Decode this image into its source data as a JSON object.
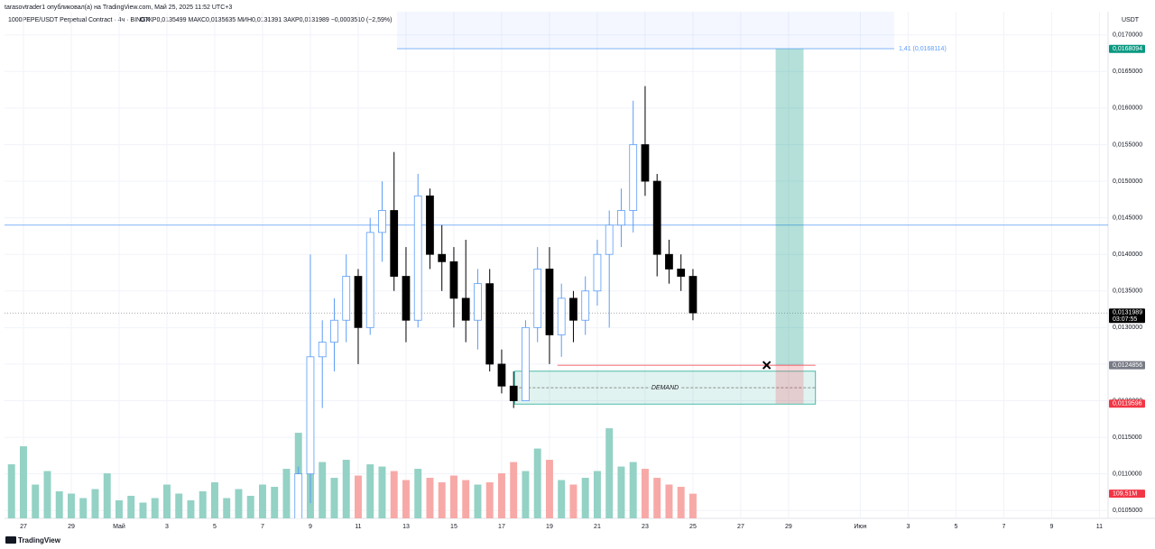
{
  "header": "tarasovtrader1 опубликовал(а) на TradingView.com, Май 25, 2025 11:52 UTC+3",
  "footer": "TradingView",
  "chart_data": {
    "type": "candlestick",
    "title": "1000PEPE/USDT Perpetual Contract · 4ч · BINGX",
    "ohlc_legend": "ОТКР0,0135499  МАКС0,0135635  МИН0,0131391  ЗАКР0,0131989  −0,0003510 (−2,59%)",
    "currency": "USDT",
    "up_color": "#5b9cf6",
    "down_color": "#000000",
    "volume_up_color": "#93d2c5",
    "volume_down_color": "#f7a9a7",
    "x": [
      "2025-04-26T12:00",
      "2025-04-27T00:00",
      "2025-04-27T12:00",
      "2025-04-28T00:00",
      "2025-04-28T12:00",
      "2025-04-29T00:00",
      "2025-04-29T12:00",
      "2025-04-30T00:00",
      "2025-04-30T12:00",
      "2025-05-01T00:00",
      "2025-05-01T12:00",
      "2025-05-02T00:00",
      "2025-05-02T12:00",
      "2025-05-03T00:00",
      "2025-05-03T12:00",
      "2025-05-04T00:00",
      "2025-05-04T12:00",
      "2025-05-05T00:00",
      "2025-05-05T12:00",
      "2025-05-06T00:00",
      "2025-05-06T12:00",
      "2025-05-07T00:00",
      "2025-05-07T12:00",
      "2025-05-08T00:00",
      "2025-05-08T12:00",
      "2025-05-09T00:00",
      "2025-05-09T12:00",
      "2025-05-10T00:00",
      "2025-05-10T12:00",
      "2025-05-11T00:00",
      "2025-05-11T12:00",
      "2025-05-12T00:00",
      "2025-05-12T12:00",
      "2025-05-13T00:00",
      "2025-05-13T12:00",
      "2025-05-14T00:00",
      "2025-05-14T12:00",
      "2025-05-15T00:00",
      "2025-05-15T12:00",
      "2025-05-16T00:00",
      "2025-05-16T12:00",
      "2025-05-17T00:00",
      "2025-05-17T12:00",
      "2025-05-18T00:00",
      "2025-05-18T12:00",
      "2025-05-19T00:00",
      "2025-05-19T12:00",
      "2025-05-20T00:00",
      "2025-05-20T12:00",
      "2025-05-21T00:00",
      "2025-05-21T12:00",
      "2025-05-22T00:00",
      "2025-05-22T12:00",
      "2025-05-23T00:00",
      "2025-05-23T12:00",
      "2025-05-24T00:00",
      "2025-05-24T12:00",
      "2025-05-25T00:00"
    ],
    "open": [
      null,
      null,
      null,
      null,
      null,
      null,
      null,
      null,
      null,
      null,
      null,
      null,
      null,
      null,
      null,
      null,
      null,
      null,
      null,
      null,
      null,
      null,
      null,
      null,
      0.0102,
      0.011,
      0.0126,
      0.0128,
      0.0131,
      0.0137,
      0.013,
      0.0143,
      0.0146,
      0.0137,
      0.0131,
      0.0148,
      0.014,
      0.0139,
      0.0134,
      0.0131,
      0.0136,
      0.0125,
      0.0122,
      0.012,
      0.013,
      0.0138,
      0.0129,
      0.0134,
      0.0131,
      0.0135,
      0.014,
      0.0144,
      0.0146,
      0.0155,
      0.015,
      0.014,
      0.0138,
      0.0137
    ],
    "high": [
      null,
      null,
      null,
      null,
      null,
      null,
      null,
      null,
      null,
      null,
      null,
      null,
      null,
      null,
      null,
      null,
      null,
      null,
      null,
      null,
      null,
      null,
      null,
      null,
      0.0111,
      0.014,
      0.0131,
      0.0134,
      0.014,
      0.0138,
      0.0145,
      0.015,
      0.0154,
      0.0141,
      0.0151,
      0.0149,
      0.0144,
      0.0141,
      0.0142,
      0.0138,
      0.0138,
      0.0127,
      0.0124,
      0.0131,
      0.0141,
      0.0141,
      0.0136,
      0.0135,
      0.0137,
      0.0142,
      0.0146,
      0.0149,
      0.0161,
      0.0163,
      0.0151,
      0.0142,
      0.014,
      0.0138
    ],
    "low": [
      null,
      null,
      null,
      null,
      null,
      null,
      null,
      null,
      null,
      null,
      null,
      null,
      null,
      null,
      null,
      null,
      null,
      null,
      null,
      null,
      null,
      null,
      null,
      null,
      0.0101,
      0.0106,
      0.0119,
      0.0124,
      0.0128,
      0.0125,
      0.0129,
      0.0139,
      0.0135,
      0.0128,
      0.013,
      0.0138,
      0.0135,
      0.013,
      0.0128,
      0.0127,
      0.0124,
      0.0121,
      0.0119,
      0.012,
      0.0128,
      0.0125,
      0.0126,
      0.0128,
      0.0129,
      0.0133,
      0.013,
      0.0141,
      0.0143,
      0.0148,
      0.0137,
      0.0136,
      0.0135,
      0.0131
    ],
    "close": [
      null,
      null,
      null,
      null,
      null,
      null,
      null,
      null,
      null,
      null,
      null,
      null,
      null,
      null,
      null,
      null,
      null,
      null,
      null,
      null,
      null,
      null,
      null,
      null,
      0.011,
      0.0126,
      0.0128,
      0.0131,
      0.0137,
      0.013,
      0.0143,
      0.0146,
      0.0137,
      0.0131,
      0.0148,
      0.014,
      0.0139,
      0.0134,
      0.0131,
      0.0136,
      0.0125,
      0.0122,
      0.012,
      0.013,
      0.0138,
      0.0129,
      0.0134,
      0.0131,
      0.0135,
      0.014,
      0.0144,
      0.0146,
      0.0155,
      0.015,
      0.014,
      0.0138,
      0.0137,
      0.0132
    ],
    "volume": [
      240,
      320,
      150,
      210,
      120,
      110,
      90,
      130,
      200,
      80,
      100,
      70,
      90,
      150,
      110,
      80,
      120,
      160,
      90,
      130,
      100,
      150,
      140,
      220,
      380,
      420,
      250,
      180,
      260,
      190,
      240,
      230,
      210,
      170,
      220,
      180,
      160,
      190,
      170,
      150,
      160,
      200,
      250,
      210,
      310,
      260,
      170,
      150,
      180,
      210,
      400,
      230,
      250,
      220,
      180,
      150,
      140,
      109.51
    ],
    "volume_label": {
      "value": 109.51,
      "label": "109,51M"
    },
    "volume_lim": [
      0,
      2250
    ],
    "xlim": [
      "2025-04-26T05:00",
      "2025-06-11T08:40"
    ],
    "xticks": [
      {
        "value": "2025-04-27",
        "label": "27"
      },
      {
        "value": "2025-04-29",
        "label": "29"
      },
      {
        "value": "2025-05-01",
        "label": "Май"
      },
      {
        "value": "2025-05-03",
        "label": "3"
      },
      {
        "value": "2025-05-05",
        "label": "5"
      },
      {
        "value": "2025-05-07",
        "label": "7"
      },
      {
        "value": "2025-05-09",
        "label": "9"
      },
      {
        "value": "2025-05-11",
        "label": "11"
      },
      {
        "value": "2025-05-13",
        "label": "13"
      },
      {
        "value": "2025-05-15",
        "label": "15"
      },
      {
        "value": "2025-05-17",
        "label": "17"
      },
      {
        "value": "2025-05-19",
        "label": "19"
      },
      {
        "value": "2025-05-21",
        "label": "21"
      },
      {
        "value": "2025-05-23",
        "label": "23"
      },
      {
        "value": "2025-05-25",
        "label": "25"
      },
      {
        "value": "2025-05-27",
        "label": "27"
      },
      {
        "value": "2025-05-29",
        "label": "29"
      },
      {
        "value": "2025-06-01",
        "label": "Июн"
      },
      {
        "value": "2025-06-03",
        "label": "3"
      },
      {
        "value": "2025-06-05",
        "label": "5"
      },
      {
        "value": "2025-06-07",
        "label": "7"
      },
      {
        "value": "2025-06-09",
        "label": "9"
      },
      {
        "value": "2025-06-11",
        "label": "11"
      }
    ],
    "ylim": [
      0.010392,
      0.017317
    ],
    "yticks": [
      {
        "value": 0.0105,
        "label": "0,0105000"
      },
      {
        "value": 0.011,
        "label": "0,0110000"
      },
      {
        "value": 0.0115,
        "label": "0,0115000"
      },
      {
        "value": 0.012,
        "label": "0,0120000"
      },
      {
        "value": 0.0125,
        "label": "0,0125000"
      },
      {
        "value": 0.013,
        "label": "0,0130000"
      },
      {
        "value": 0.0135,
        "label": "0,0135000"
      },
      {
        "value": 0.014,
        "label": "0,0140000"
      },
      {
        "value": 0.0145,
        "label": "0,0145000"
      },
      {
        "value": 0.015,
        "label": "0,0150000"
      },
      {
        "value": 0.0155,
        "label": "0,0155000"
      },
      {
        "value": 0.016,
        "label": "0,0160000"
      },
      {
        "value": 0.0165,
        "label": "0,0165000"
      },
      {
        "value": 0.017,
        "label": "0,0170000"
      }
    ],
    "grid": true,
    "horizontal_line": {
      "value": 0.0144,
      "color": "#5b9cf6"
    },
    "last_price": {
      "value": 0.0131989,
      "label": "0,0131989",
      "countdown": "03:07:55"
    },
    "target_zone": {
      "start": "2025-05-12T15:00",
      "end": "2025-06-02T10:00",
      "value": 0.0168114,
      "label": "1,41 (0,0168114)"
    },
    "demand": {
      "start": "2025-05-17T13:00",
      "end": "2025-05-30T03:00",
      "top": 0.012403,
      "bottom": 0.011954,
      "label": "DEMAND"
    },
    "entry_line": {
      "start": "2025-05-19T08:00",
      "end": "2025-05-30T03:00",
      "value": 0.0124856
    },
    "cross_marker": {
      "x": "2025-05-28T02:00",
      "value": 0.0124856
    },
    "position": {
      "start": "2025-05-28T11:00",
      "end": "2025-05-29T15:00",
      "target": {
        "value": 0.0168094,
        "label": "0,0168094"
      },
      "entry": {
        "value": 0.0124856,
        "label": "0,0124856"
      },
      "stop": {
        "value": 0.0119596,
        "label": "0,0119596"
      }
    }
  }
}
